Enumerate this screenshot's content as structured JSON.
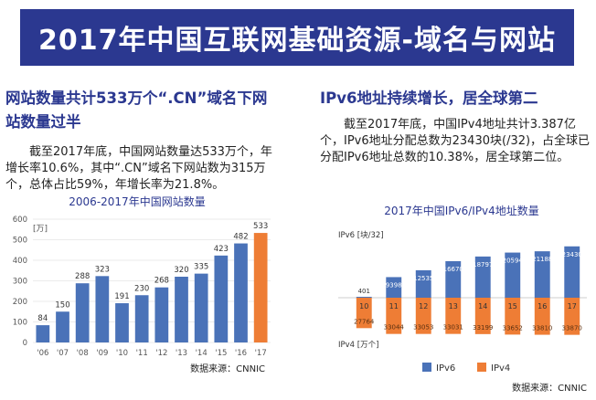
{
  "banner": {
    "title": "2017年中国互联网基础资源-域名与网站"
  },
  "left": {
    "heading": "网站数量共计533万个“.CN”域名下网站数量过半",
    "body": "截至2017年底，中国网站数量达533万个，年增长率10.6%，其中“.CN”域名下网站数为315万个，总体占比59%，年增长率为21.8%。"
  },
  "right": {
    "heading": "IPv6地址持续增长，居全球第二",
    "body": "截至2017年底，中国IPv4地址共计3.387亿个，IPv6地址分配总数为23430块(/32)，占全球已分配IPv6地址总数的10.38%，居全球第二位。"
  },
  "colors": {
    "blue": "#4a72b8",
    "orange": "#ee7d35",
    "navy": "#2b3890"
  },
  "chart_data": [
    {
      "type": "bar",
      "title": "2006-2017年中国网站数量",
      "ylabel": "[万]",
      "categories": [
        "'06",
        "'07",
        "'08",
        "'09",
        "'10",
        "'11",
        "'12",
        "'13",
        "'14",
        "'15",
        "'16",
        "'17"
      ],
      "values": [
        84,
        150,
        288,
        323,
        191,
        230,
        268,
        320,
        335,
        423,
        482,
        533
      ],
      "highlight_index": 11,
      "ylim": [
        0,
        600
      ],
      "yticks": [
        0,
        100,
        200,
        300,
        400,
        500,
        600
      ],
      "source": "数据来源：CNNIC"
    },
    {
      "type": "bar",
      "title": "2017年中国IPv6/IPv4地址数量",
      "top_axis_label": "IPv6 [块/32]",
      "bottom_axis_label": "IPv4 [万个]",
      "categories": [
        "10",
        "11",
        "12",
        "13",
        "14",
        "15",
        "16",
        "17"
      ],
      "series": [
        {
          "name": "IPv6",
          "values": [
            401,
            9398,
            12535,
            16670,
            18797,
            20594,
            21188,
            23430
          ]
        },
        {
          "name": "IPv4",
          "values": [
            27764,
            33044,
            33053,
            33031,
            33199,
            33652,
            33810,
            33870
          ]
        }
      ],
      "source": "数据来源：CNNIC"
    }
  ]
}
